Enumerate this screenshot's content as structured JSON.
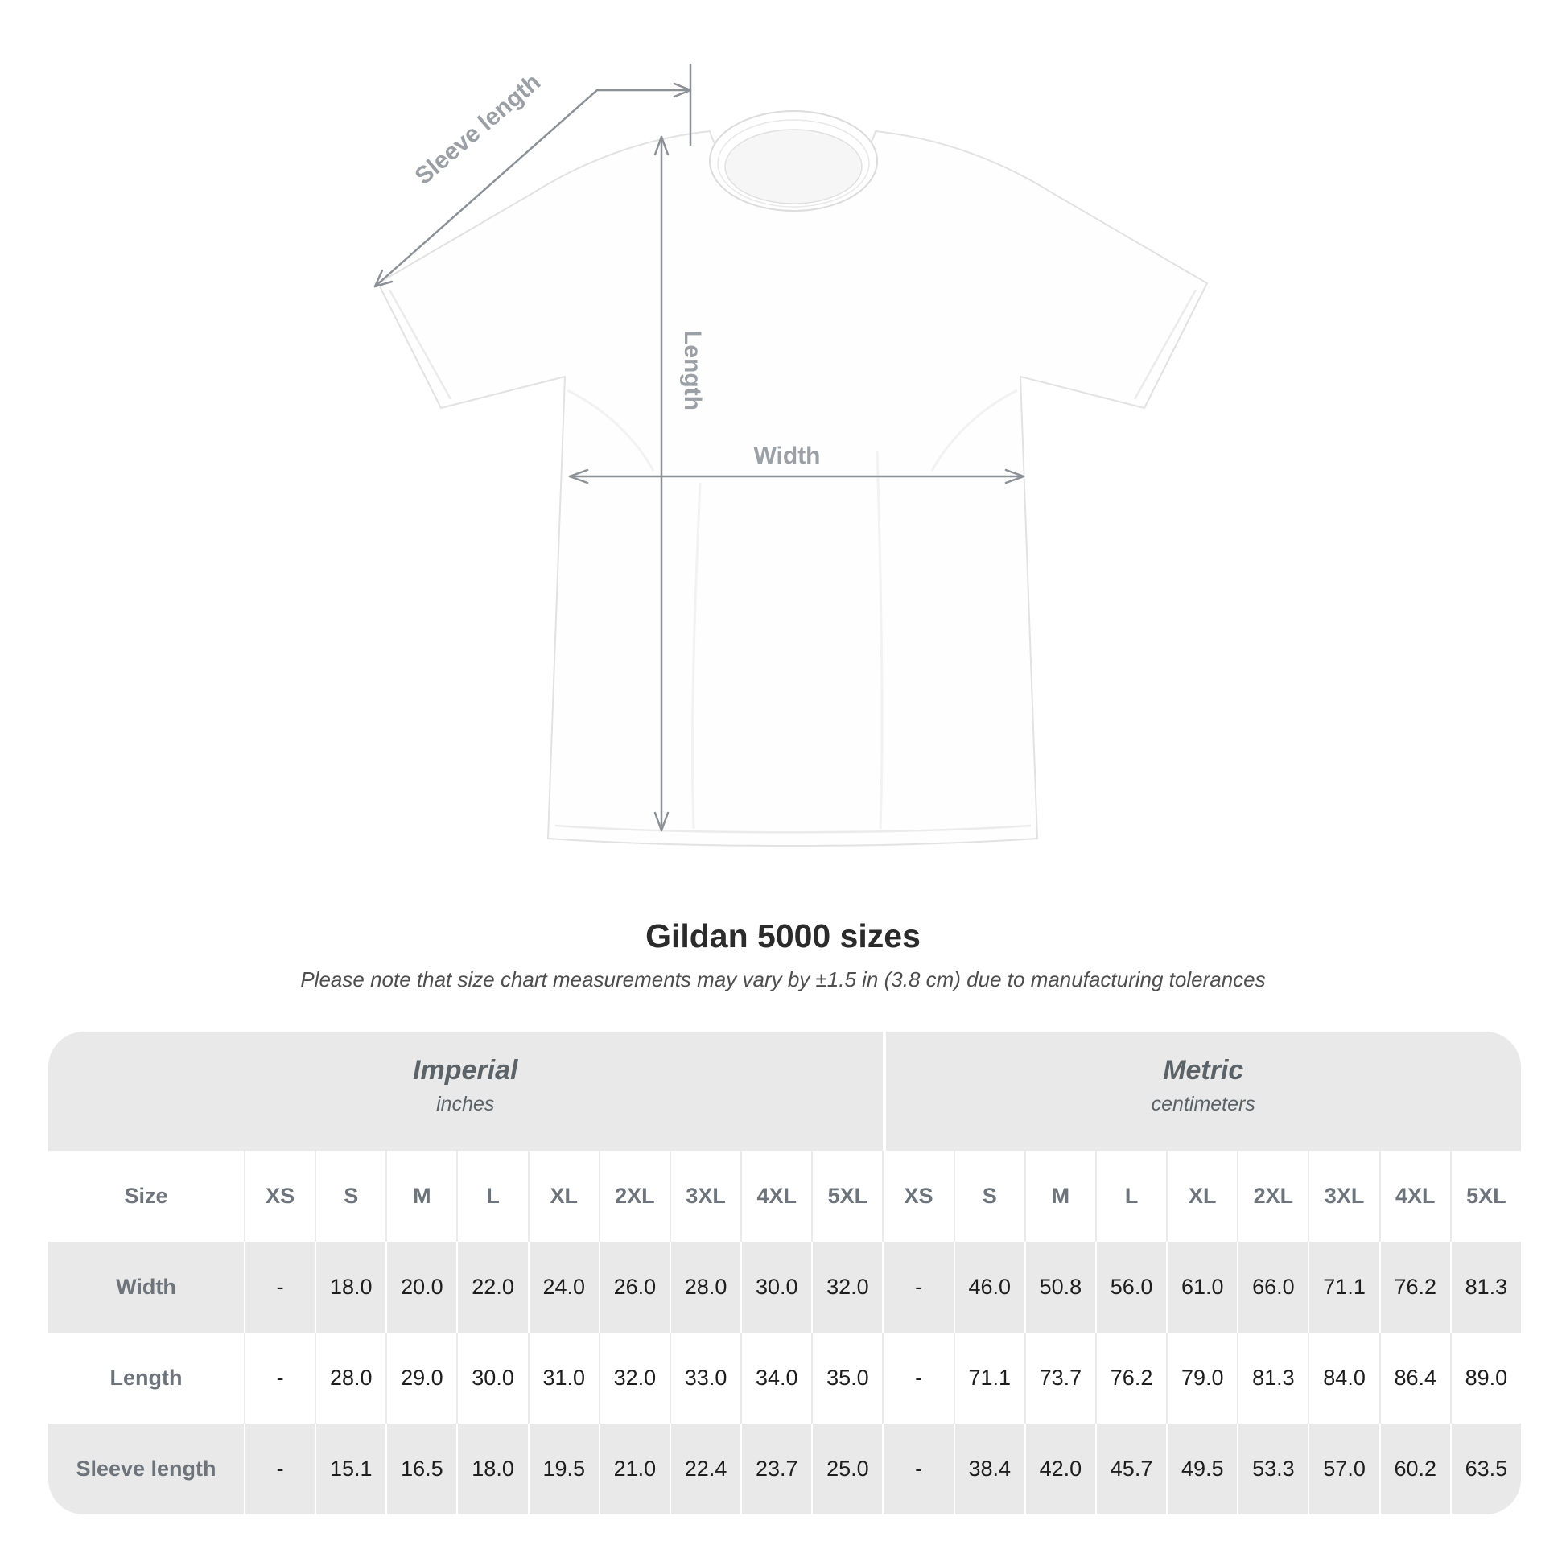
{
  "title": "Gildan 5000 sizes",
  "subtitle": "Please note that size chart measurements may vary by ±1.5 in (3.8 cm) due to manufacturing tolerances",
  "diagram": {
    "labels": {
      "sleeve_length": "Sleeve length",
      "length": "Length",
      "width": "Width"
    }
  },
  "table": {
    "size_header": "Size",
    "sections": [
      {
        "label": "Imperial",
        "sublabel": "inches"
      },
      {
        "label": "Metric",
        "sublabel": "centimeters"
      }
    ],
    "sizes": [
      "XS",
      "S",
      "M",
      "L",
      "XL",
      "2XL",
      "3XL",
      "4XL",
      "5XL"
    ],
    "rows": [
      {
        "label": "Width",
        "imperial": [
          "-",
          "18.0",
          "20.0",
          "22.0",
          "24.0",
          "26.0",
          "28.0",
          "30.0",
          "32.0"
        ],
        "metric": [
          "-",
          "46.0",
          "50.8",
          "56.0",
          "61.0",
          "66.0",
          "71.1",
          "76.2",
          "81.3"
        ]
      },
      {
        "label": "Length",
        "imperial": [
          "-",
          "28.0",
          "29.0",
          "30.0",
          "31.0",
          "32.0",
          "33.0",
          "34.0",
          "35.0"
        ],
        "metric": [
          "-",
          "71.1",
          "73.7",
          "76.2",
          "79.0",
          "81.3",
          "84.0",
          "86.4",
          "89.0"
        ]
      },
      {
        "label": "Sleeve length",
        "imperial": [
          "-",
          "15.1",
          "16.5",
          "18.0",
          "19.5",
          "21.0",
          "22.4",
          "23.7",
          "25.0"
        ],
        "metric": [
          "-",
          "38.4",
          "42.0",
          "45.7",
          "49.5",
          "53.3",
          "57.0",
          "60.2",
          "63.5"
        ]
      }
    ]
  },
  "chart_data": {
    "type": "table",
    "title": "Gildan 5000 sizes",
    "note": "Please note that size chart measurements may vary by ±1.5 in (3.8 cm) due to manufacturing tolerances",
    "sections": [
      {
        "name": "Imperial",
        "unit": "inches"
      },
      {
        "name": "Metric",
        "unit": "centimeters"
      }
    ],
    "categories": [
      "XS",
      "S",
      "M",
      "L",
      "XL",
      "2XL",
      "3XL",
      "4XL",
      "5XL"
    ],
    "series": [
      {
        "name": "Width (in)",
        "values": [
          null,
          18.0,
          20.0,
          22.0,
          24.0,
          26.0,
          28.0,
          30.0,
          32.0
        ]
      },
      {
        "name": "Length (in)",
        "values": [
          null,
          28.0,
          29.0,
          30.0,
          31.0,
          32.0,
          33.0,
          34.0,
          35.0
        ]
      },
      {
        "name": "Sleeve length (in)",
        "values": [
          null,
          15.1,
          16.5,
          18.0,
          19.5,
          21.0,
          22.4,
          23.7,
          25.0
        ]
      },
      {
        "name": "Width (cm)",
        "values": [
          null,
          46.0,
          50.8,
          56.0,
          61.0,
          66.0,
          71.1,
          76.2,
          81.3
        ]
      },
      {
        "name": "Length (cm)",
        "values": [
          null,
          71.1,
          73.7,
          76.2,
          79.0,
          81.3,
          84.0,
          86.4,
          89.0
        ]
      },
      {
        "name": "Sleeve length (cm)",
        "values": [
          null,
          38.4,
          42.0,
          45.7,
          49.5,
          53.3,
          57.0,
          60.2,
          63.5
        ]
      }
    ]
  },
  "colors": {
    "table-band": "#e9e9e9",
    "row-alt": "#e9e9e9",
    "sep-light": "#eaeaea",
    "label-gray": "#6d747b",
    "value-dark": "#1e1e1e",
    "annotation-gray": "#9aa0a5",
    "arrow-gray": "#8b9196",
    "title-dark": "#2b2b2b",
    "subtitle-gray": "#4e4e4e",
    "section-label": "#5b6368"
  }
}
